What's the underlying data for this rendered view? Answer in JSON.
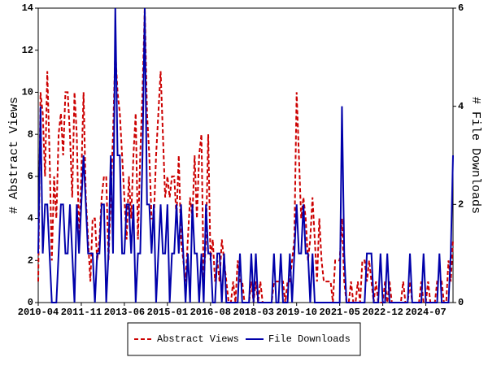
{
  "chart_data": {
    "type": "line",
    "y_label": "# Abstract Views",
    "y2_label": "# File Downloads",
    "categories": [
      "2010-04",
      null,
      null,
      null,
      null,
      null,
      null,
      null,
      null,
      null,
      null,
      null,
      null,
      null,
      null,
      null,
      null,
      null,
      null,
      "2011-11",
      null,
      null,
      null,
      null,
      null,
      null,
      null,
      null,
      null,
      null,
      null,
      null,
      null,
      null,
      null,
      null,
      null,
      null,
      "2013-06",
      null,
      null,
      null,
      null,
      null,
      null,
      null,
      null,
      null,
      null,
      null,
      null,
      null,
      null,
      null,
      null,
      null,
      null,
      "2015-01",
      null,
      null,
      null,
      null,
      null,
      null,
      null,
      null,
      null,
      null,
      null,
      null,
      null,
      null,
      null,
      null,
      null,
      null,
      "2016-08",
      null,
      null,
      null,
      null,
      null,
      null,
      null,
      null,
      null,
      null,
      null,
      null,
      null,
      null,
      null,
      null,
      null,
      null,
      "2018-03",
      null,
      null,
      null,
      null,
      null,
      null,
      null,
      null,
      null,
      null,
      null,
      null,
      null,
      null,
      null,
      null,
      null,
      null,
      "2019-10",
      null,
      null,
      null,
      null,
      null,
      null,
      null,
      null,
      null,
      null,
      null,
      null,
      null,
      null,
      null,
      null,
      null,
      null,
      "2021-05",
      null,
      null,
      null,
      null,
      null,
      null,
      null,
      null,
      null,
      null,
      null,
      null,
      null,
      null,
      null,
      null,
      null,
      null,
      "2022-12",
      null,
      null,
      null,
      null,
      null,
      null,
      null,
      null,
      null,
      null,
      null,
      null,
      null,
      null,
      null,
      null,
      null,
      null,
      "2024-07",
      null,
      null,
      null,
      null,
      null,
      null,
      null,
      null,
      null,
      null,
      null,
      null
    ],
    "series": [
      {
        "name": "Abstract Views",
        "color": "#cc0000",
        "dashed": true,
        "axis": "y",
        "values": [
          1,
          10,
          9,
          6,
          11,
          7,
          2,
          6,
          4,
          8,
          9,
          7,
          10,
          10,
          8,
          5,
          10,
          8,
          3,
          6,
          10,
          5,
          3,
          1,
          4,
          4,
          2,
          3,
          5,
          6,
          6,
          2,
          5,
          8,
          12,
          10,
          9,
          7,
          5,
          3,
          6,
          4,
          7,
          9,
          3,
          7,
          10,
          14,
          9,
          7,
          4,
          4,
          7,
          9,
          11,
          8,
          5,
          6,
          5,
          6,
          6,
          4,
          7,
          3,
          2,
          1,
          3,
          5,
          4,
          7,
          4,
          7,
          8,
          1,
          3,
          8,
          2,
          3,
          1,
          2,
          1,
          3,
          2,
          1,
          0,
          0,
          1,
          0,
          2,
          1,
          1,
          0,
          0,
          0,
          1,
          0,
          1,
          0,
          1,
          0,
          0,
          0,
          0,
          0,
          1,
          1,
          1,
          1,
          1,
          0,
          1,
          1,
          2,
          3,
          10,
          7,
          4,
          5,
          4,
          2,
          3,
          5,
          3,
          1,
          4,
          2,
          1,
          1,
          1,
          1,
          0,
          2,
          2,
          2,
          4,
          1,
          0,
          0,
          1,
          0,
          0,
          1,
          0,
          2,
          2,
          1,
          2,
          1,
          0,
          1,
          0,
          0,
          0,
          1,
          0,
          1,
          0,
          0,
          0,
          0,
          0,
          1,
          0,
          0,
          1,
          0,
          0,
          0,
          0,
          1,
          0,
          0,
          1,
          0,
          0,
          0,
          1,
          1,
          1,
          0,
          0,
          2,
          1,
          3
        ]
      },
      {
        "name": "File Downloads",
        "color": "#0000aa",
        "dashed": false,
        "axis": "y2",
        "values": [
          1,
          4,
          1,
          2,
          2,
          1,
          0,
          0,
          0,
          1,
          2,
          2,
          1,
          1,
          2,
          1,
          0,
          2,
          1,
          2,
          3,
          2,
          1,
          1,
          1,
          0,
          1,
          1,
          2,
          2,
          0,
          1,
          3,
          1,
          6,
          3,
          3,
          1,
          1,
          2,
          2,
          1,
          2,
          0,
          1,
          1,
          3,
          6,
          2,
          2,
          1,
          2,
          0,
          1,
          2,
          1,
          1,
          2,
          0,
          1,
          1,
          2,
          1,
          2,
          1,
          0,
          1,
          0,
          2,
          1,
          1,
          0,
          1,
          0,
          2,
          1,
          1,
          0,
          0,
          1,
          1,
          0,
          1,
          0,
          0,
          0,
          0,
          0,
          0,
          1,
          0,
          0,
          0,
          0,
          1,
          0,
          1,
          0,
          0,
          0,
          0,
          0,
          0,
          0,
          1,
          0,
          0,
          1,
          0,
          0,
          0,
          1,
          0,
          1,
          2,
          1,
          1,
          2,
          1,
          1,
          0,
          1,
          0,
          0,
          0,
          0,
          0,
          0,
          0,
          0,
          0,
          0,
          0,
          0,
          4,
          1,
          0,
          0,
          0,
          0,
          0,
          0,
          0,
          0,
          0,
          1,
          1,
          1,
          0,
          0,
          0,
          1,
          0,
          0,
          1,
          0,
          0,
          0,
          0,
          0,
          0,
          0,
          0,
          0,
          1,
          0,
          0,
          0,
          0,
          0,
          1,
          0,
          0,
          0,
          0,
          0,
          0,
          1,
          0,
          0,
          0,
          0,
          1,
          3
        ]
      }
    ],
    "ylim": [
      0,
      14
    ],
    "yticks": [
      0,
      2,
      4,
      6,
      8,
      10,
      12,
      14
    ],
    "y2lim": [
      0,
      6
    ],
    "y2ticks": [
      0,
      2,
      4,
      6
    ],
    "grid": false
  }
}
